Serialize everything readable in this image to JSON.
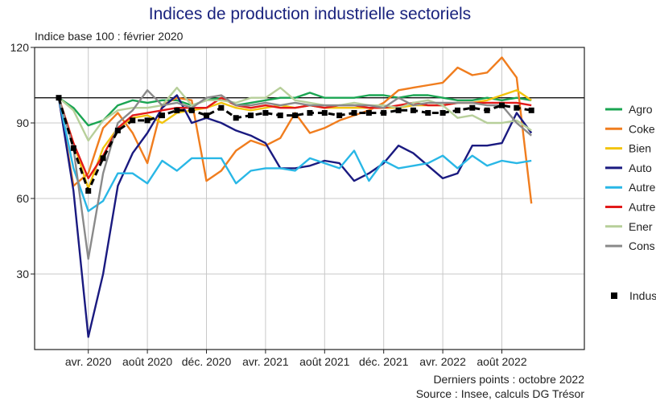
{
  "chart_data": {
    "type": "line",
    "title": "Indices de production industrielle sectoriels",
    "subtitle": "Indice base 100 : février 2020",
    "footnote_1": "Derniers points : octobre 2022",
    "footnote_2": "Source : Insee, calculs DG Trésor",
    "ylim": [
      0,
      120
    ],
    "yticks": [
      "30",
      "60",
      "90",
      "120"
    ],
    "ytick_values": [
      30,
      60,
      90,
      120
    ],
    "reference_line": 100,
    "x_count": 33,
    "xticks": [
      {
        "index": 2,
        "label": "avr. 2020"
      },
      {
        "index": 6,
        "label": "août 2020"
      },
      {
        "index": 10,
        "label": "déc. 2020"
      },
      {
        "index": 14,
        "label": "avr. 2021"
      },
      {
        "index": 18,
        "label": "août 2021"
      },
      {
        "index": 22,
        "label": "déc. 2021"
      },
      {
        "index": 26,
        "label": "avr. 2022"
      },
      {
        "index": 30,
        "label": "août 2022"
      }
    ],
    "series": [
      {
        "name": "Agro",
        "color": "#1aa552",
        "values": [
          100,
          96,
          89,
          91,
          97,
          99,
          98,
          99,
          99,
          97,
          99,
          100,
          97,
          98,
          99,
          100,
          100,
          102,
          100,
          100,
          100,
          101,
          101,
          100,
          101,
          101,
          100,
          99,
          99,
          100,
          99,
          100,
          99
        ]
      },
      {
        "name": "Coke",
        "color": "#f07d1e",
        "values": [
          100,
          65,
          70,
          88,
          94,
          86,
          74,
          97,
          100,
          99,
          67,
          71,
          79,
          83,
          81,
          84,
          94,
          86,
          88,
          91,
          93,
          95,
          98,
          103,
          104,
          105,
          106,
          112,
          109,
          110,
          116,
          108,
          58
        ]
      },
      {
        "name": "Bien",
        "color": "#f2c40f",
        "values": [
          100,
          82,
          64,
          80,
          88,
          92,
          93,
          90,
          94,
          95,
          96,
          98,
          96,
          95,
          96,
          97,
          96,
          97,
          96,
          96,
          96,
          96,
          96,
          96,
          97,
          97,
          97,
          98,
          98,
          99,
          101,
          103,
          99
        ]
      },
      {
        "name": "Auto",
        "color": "#1a1a80",
        "values": [
          100,
          63,
          5,
          30,
          65,
          78,
          86,
          96,
          101,
          90,
          92,
          90,
          87,
          85,
          82,
          72,
          72,
          73,
          75,
          74,
          67,
          70,
          74,
          81,
          78,
          73,
          68,
          70,
          81,
          81,
          82,
          94,
          86
        ]
      },
      {
        "name": "Autre",
        "color": "#29b7e6",
        "values": [
          100,
          72,
          55,
          59,
          70,
          70,
          66,
          75,
          71,
          76,
          76,
          76,
          66,
          71,
          72,
          72,
          71,
          76,
          74,
          72,
          79,
          67,
          75,
          72,
          73,
          74,
          77,
          72,
          77,
          73,
          75,
          74,
          75
        ]
      },
      {
        "name": "Autre",
        "color": "#e21a1a",
        "values": [
          100,
          82,
          68,
          77,
          88,
          93,
          94,
          95,
          96,
          96,
          96,
          100,
          97,
          96,
          97,
          96,
          96,
          97,
          96,
          97,
          97,
          96,
          96,
          97,
          98,
          97,
          97,
          98,
          98,
          98,
          98,
          98,
          97
        ]
      },
      {
        "name": "Ener",
        "color": "#b7cf9a",
        "values": [
          100,
          95,
          83,
          91,
          95,
          96,
          96,
          97,
          104,
          97,
          99,
          99,
          98,
          100,
          100,
          104,
          99,
          98,
          97,
          97,
          98,
          97,
          97,
          96,
          98,
          99,
          97,
          92,
          93,
          90,
          90,
          91,
          87
        ]
      },
      {
        "name": "Cons",
        "color": "#8a8a8a",
        "values": [
          100,
          80,
          36,
          70,
          90,
          95,
          103,
          97,
          98,
          96,
          100,
          101,
          97,
          97,
          98,
          97,
          98,
          97,
          97,
          97,
          97,
          97,
          96,
          100,
          97,
          98,
          98,
          98,
          98,
          97,
          97,
          90,
          85
        ]
      },
      {
        "name": "Indus",
        "color": "#000000",
        "dashed": true,
        "markers": true,
        "values": [
          100,
          80,
          63,
          76,
          87,
          91,
          91,
          93,
          95,
          95,
          93,
          96,
          92,
          93,
          94,
          93,
          93,
          94,
          94,
          93,
          94,
          94,
          94,
          95,
          95,
          94,
          94,
          95,
          96,
          95,
          97,
          96,
          95
        ]
      }
    ]
  }
}
